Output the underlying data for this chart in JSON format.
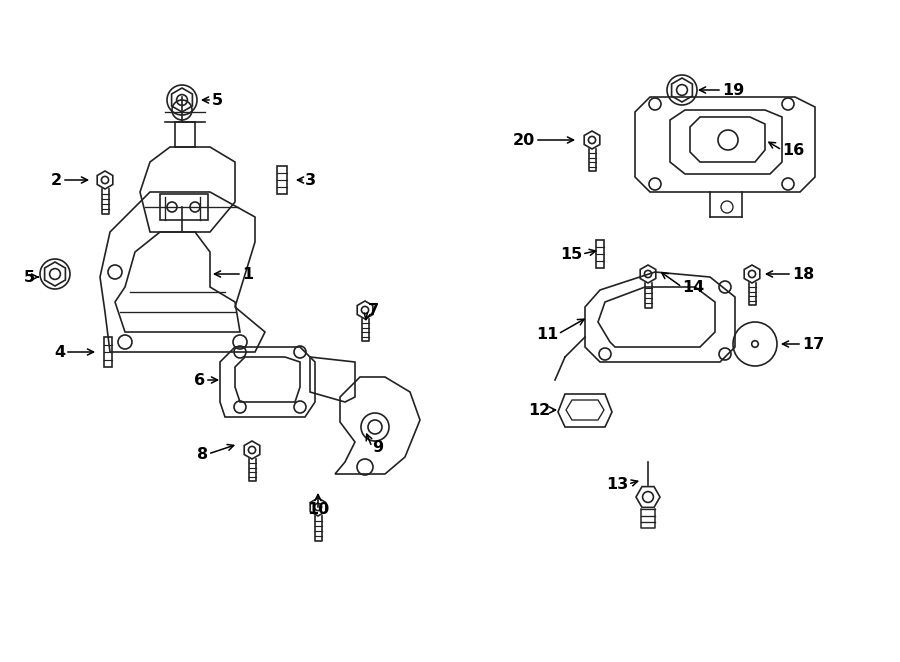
{
  "bg_color": "#ffffff",
  "line_color": "#222222",
  "text_color": "#000000",
  "fig_width": 9.0,
  "fig_height": 6.62
}
